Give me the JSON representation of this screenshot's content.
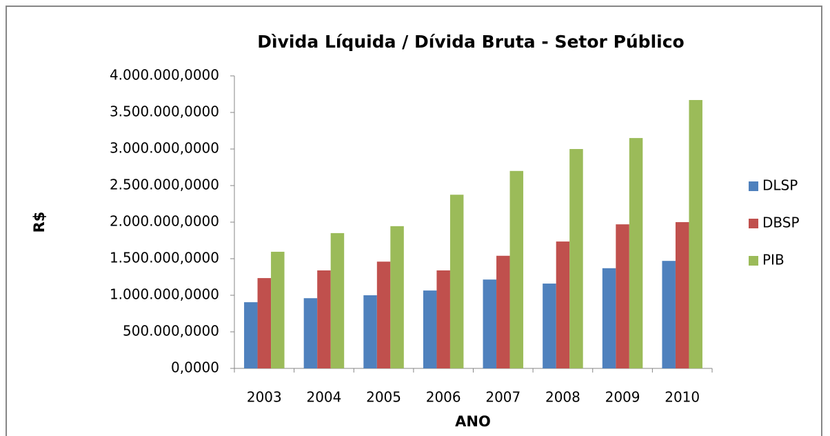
{
  "chart_data": {
    "type": "bar",
    "title": "Dìvida Líquida / Dívida Bruta - Setor Público",
    "xlabel": "ANO",
    "ylabel": "R$",
    "categories": [
      "2003",
      "2004",
      "2005",
      "2006",
      "2007",
      "2008",
      "2009",
      "2010"
    ],
    "series": [
      {
        "name": "DLSP",
        "color": "#4f81bd",
        "values": [
          905000,
          960000,
          1000000,
          1065000,
          1215000,
          1160000,
          1370000,
          1470000
        ]
      },
      {
        "name": "DBSP",
        "color": "#c0504d",
        "values": [
          1235000,
          1340000,
          1460000,
          1340000,
          1540000,
          1735000,
          1970000,
          2000000
        ]
      },
      {
        "name": "PIB",
        "color": "#9bbb59",
        "values": [
          1595000,
          1850000,
          1945000,
          2375000,
          2700000,
          3000000,
          3150000,
          3670000
        ]
      }
    ],
    "ylim": [
      0,
      4000000
    ],
    "yticks": [
      {
        "value": 0,
        "label": "0,0000"
      },
      {
        "value": 500000,
        "label": "500.000,0000"
      },
      {
        "value": 1000000,
        "label": "1.000.000,0000"
      },
      {
        "value": 1500000,
        "label": "1.500.000,0000"
      },
      {
        "value": 2000000,
        "label": "2.000.000,0000"
      },
      {
        "value": 2500000,
        "label": "2.500.000,0000"
      },
      {
        "value": 3000000,
        "label": "3.000.000,0000"
      },
      {
        "value": 3500000,
        "label": "3.500.000,0000"
      },
      {
        "value": 4000000,
        "label": "4.000.000,0000"
      }
    ],
    "grid": false,
    "legend": "right"
  }
}
